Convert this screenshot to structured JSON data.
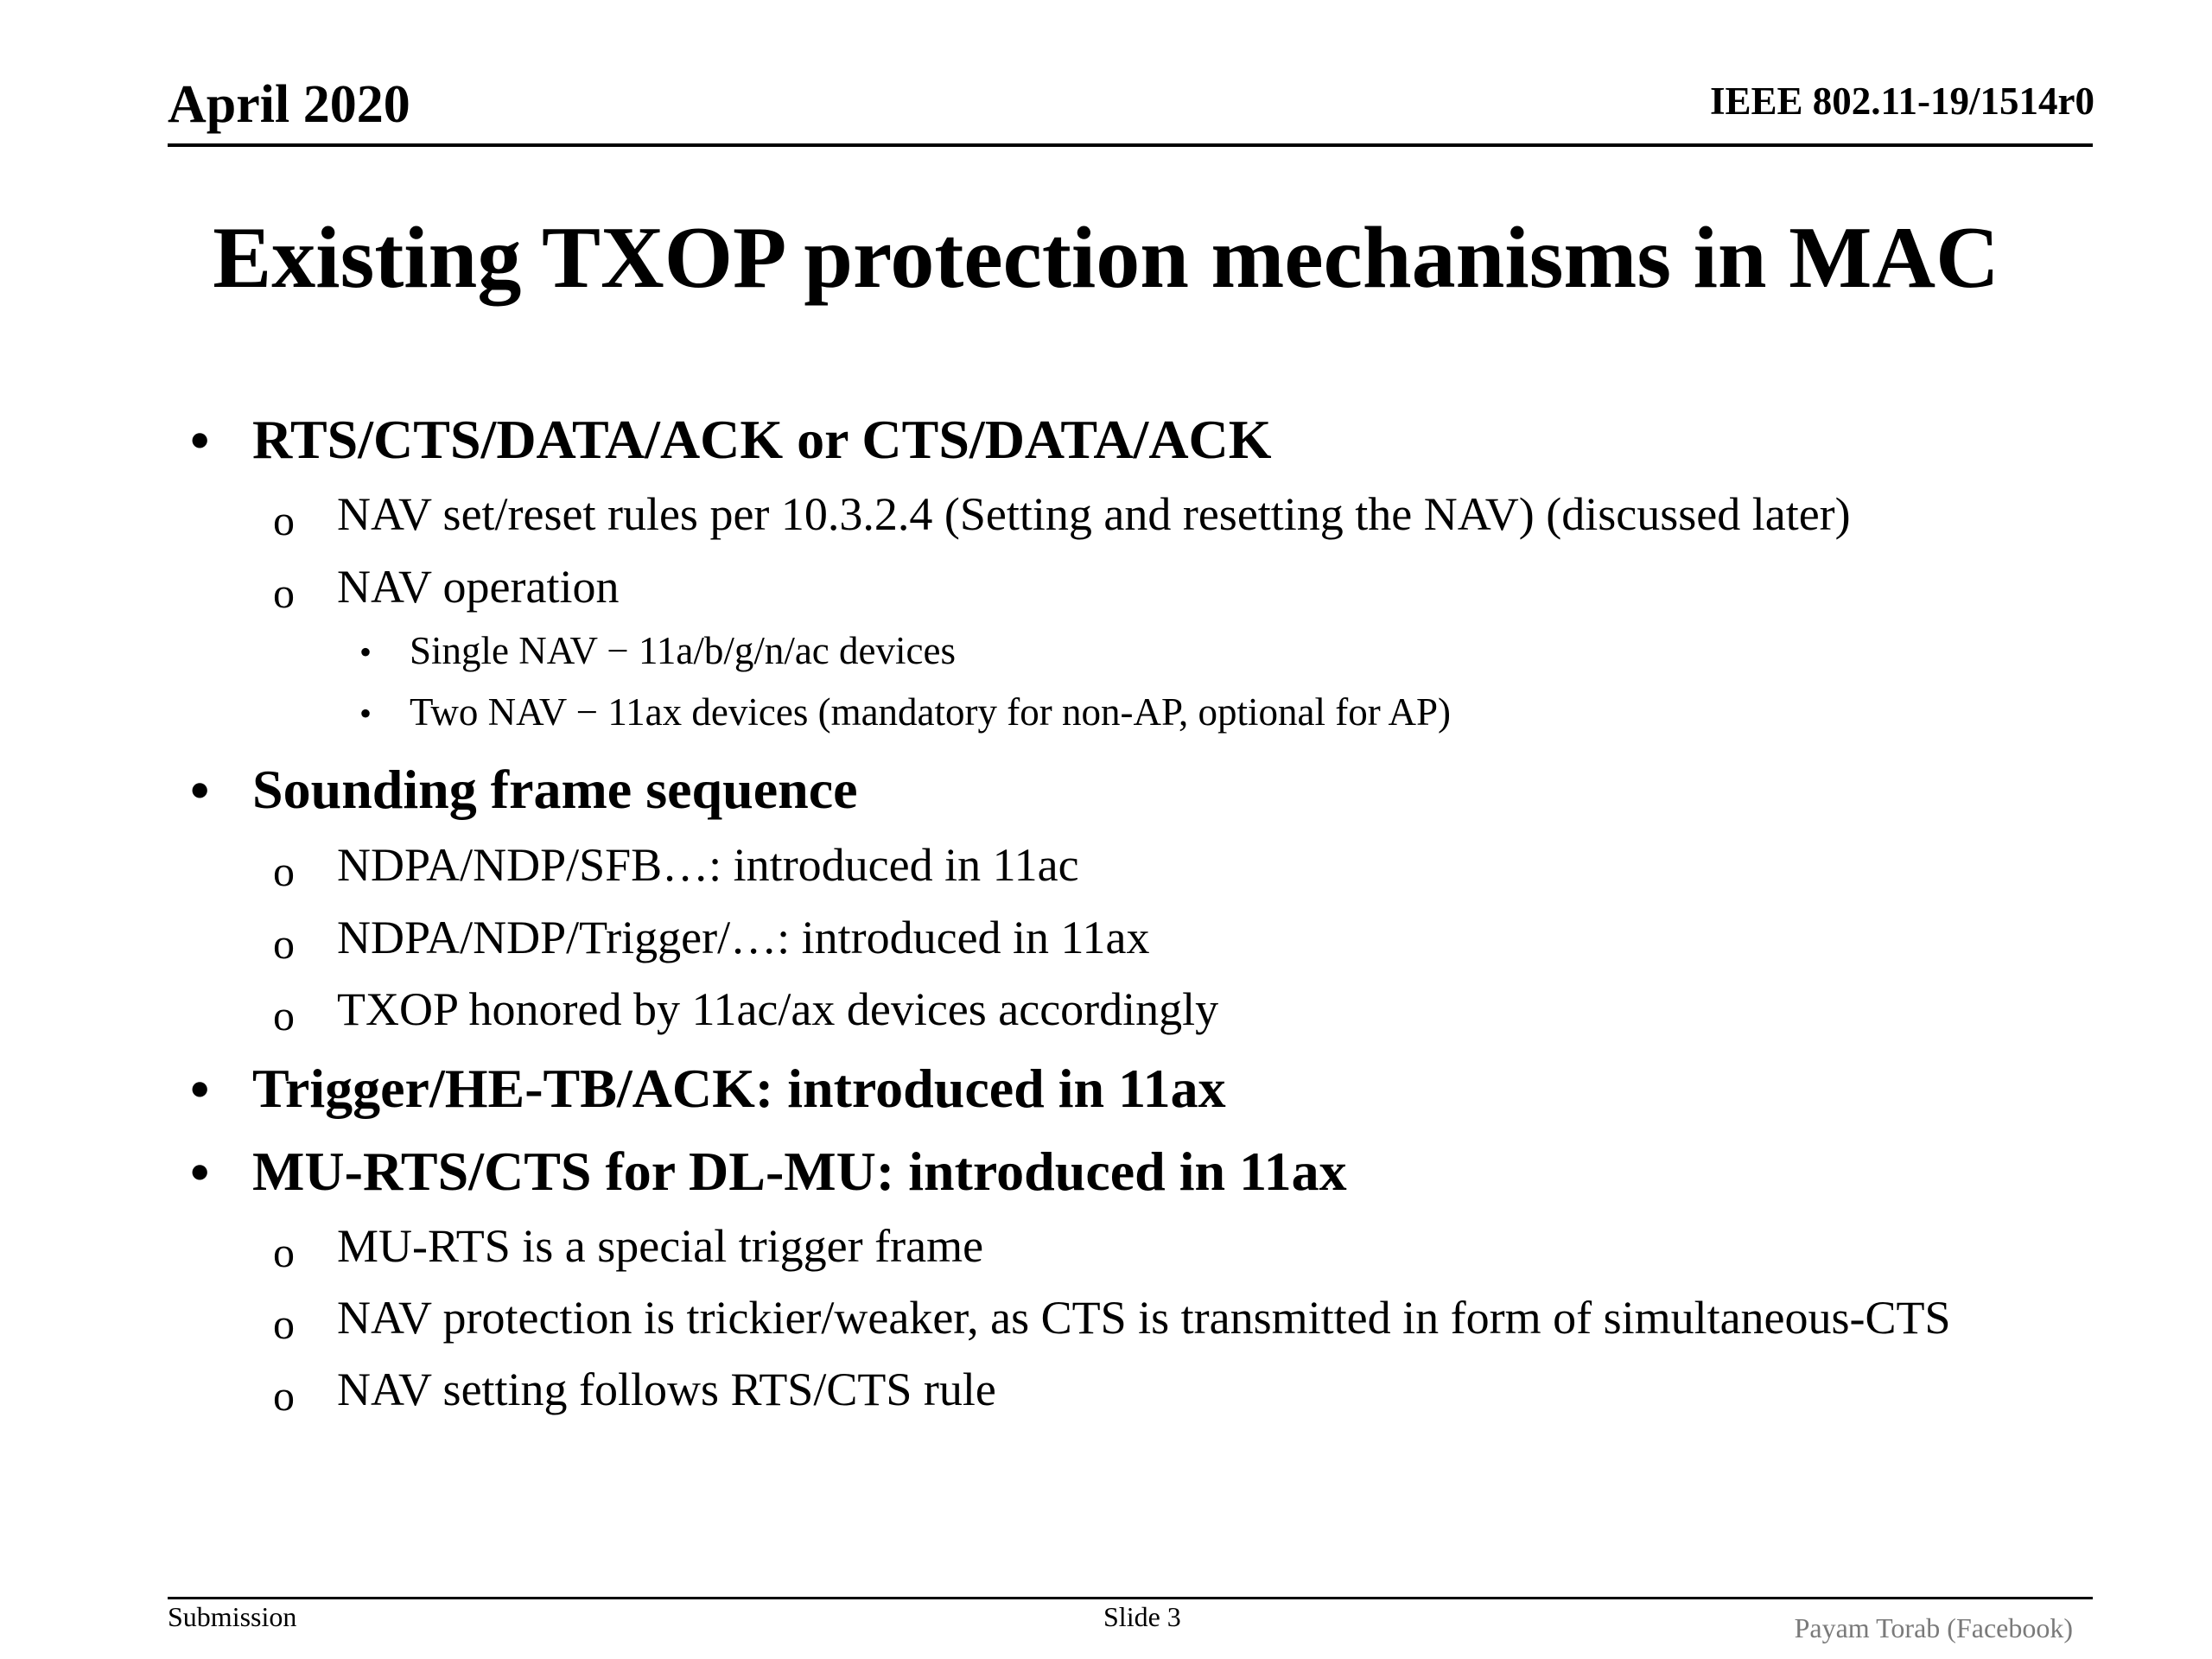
{
  "header": {
    "date": "April 2020",
    "doc_id": "IEEE 802.11-19/1514r0"
  },
  "title": "Existing TXOP protection mechanisms in MAC",
  "bullets": [
    {
      "text": "RTS/CTS/DATA/ACK or CTS/DATA/ACK",
      "sub": [
        {
          "text": "NAV set/reset rules per 10.3.2.4 (Setting and resetting the NAV) (discussed later)"
        },
        {
          "text": "NAV operation",
          "sub": [
            {
              "text": "Single NAV − 11a/b/g/n/ac devices"
            },
            {
              "text": "Two NAV − 11ax devices (mandatory for non-AP, optional for AP)"
            }
          ]
        }
      ]
    },
    {
      "text": "Sounding frame sequence",
      "sub": [
        {
          "text": "NDPA/NDP/SFB…: introduced in 11ac"
        },
        {
          "text": "NDPA/NDP/Trigger/…: introduced in 11ax"
        },
        {
          "text": "TXOP honored by 11ac/ax devices accordingly"
        }
      ]
    },
    {
      "text": "Trigger/HE-TB/ACK: introduced in 11ax"
    },
    {
      "text": "MU-RTS/CTS for DL-MU: introduced in 11ax",
      "sub": [
        {
          "text": "MU-RTS is a special trigger frame"
        },
        {
          "text": "NAV protection is trickier/weaker, as CTS is transmitted in form of simultaneous-CTS"
        },
        {
          "text": "NAV setting follows RTS/CTS rule"
        }
      ]
    }
  ],
  "markers": {
    "level1": "•",
    "level2": "o",
    "level3": "•"
  },
  "footer": {
    "left": "Submission",
    "center": "Slide 3",
    "right": "Payam Torab (Facebook)"
  }
}
